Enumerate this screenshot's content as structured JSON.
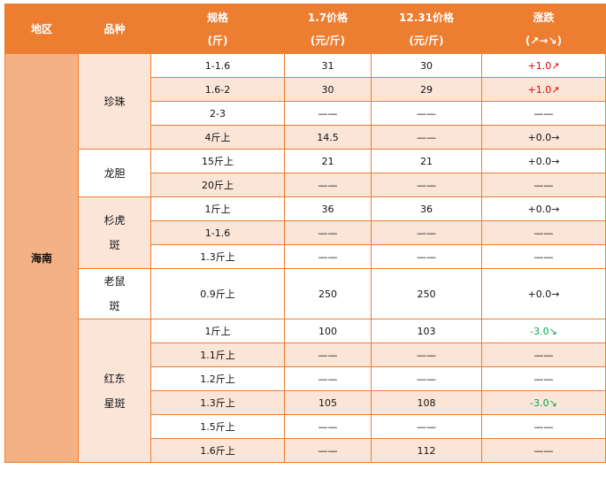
{
  "header": {
    "region": "地区",
    "variety": "品种",
    "spec": [
      "规格",
      "(斤)"
    ],
    "price1": [
      "1.7价格",
      "(元/斤)"
    ],
    "price2": [
      "12.31价格",
      "(元/斤)"
    ],
    "change": [
      "涨跌",
      "(↗→↘)"
    ]
  },
  "region": "海南",
  "colors": {
    "header": "#ed7d31",
    "region": "#f4b183",
    "stripe": "#fae5d7",
    "up": "#e00000",
    "down": "#00a850"
  },
  "groups": [
    {
      "variety": [
        "珍珠"
      ],
      "rows": [
        [
          "1-1.6",
          "31",
          "30",
          "+1.0↗"
        ],
        [
          "1.6-2",
          "30",
          "29",
          "+1.0↗"
        ],
        [
          "2-3",
          "——",
          "——",
          "——"
        ],
        [
          "4斤上",
          "14.5",
          "——",
          "+0.0→"
        ]
      ]
    },
    {
      "variety": [
        "龙胆"
      ],
      "rows": [
        [
          "15斤上",
          "21",
          "21",
          "+0.0→"
        ],
        [
          "20斤上",
          "——",
          "——",
          "——"
        ]
      ]
    },
    {
      "variety": [
        "杉虎",
        "斑"
      ],
      "rows": [
        [
          "1斤上",
          "36",
          "36",
          "+0.0→"
        ],
        [
          "1-1.6",
          "——",
          "——",
          "——"
        ],
        [
          "1.3斤上",
          "——",
          "——",
          "——"
        ]
      ]
    },
    {
      "variety": [
        "老鼠",
        "斑"
      ],
      "rows": [
        [
          "0.9斤上",
          "250",
          "250",
          "+0.0→"
        ]
      ]
    },
    {
      "variety": [
        "红东",
        "星斑"
      ],
      "rows": [
        [
          "1斤上",
          "100",
          "103",
          "-3.0↘"
        ],
        [
          "1.1斤上",
          "——",
          "——",
          "——"
        ],
        [
          "1.2斤上",
          "——",
          "——",
          "——"
        ],
        [
          "1.3斤上",
          "105",
          "108",
          "-3.0↘"
        ],
        [
          "1.5斤上",
          "——",
          "——",
          "——"
        ],
        [
          "1.6斤上",
          "——",
          "112",
          "——"
        ]
      ]
    }
  ]
}
